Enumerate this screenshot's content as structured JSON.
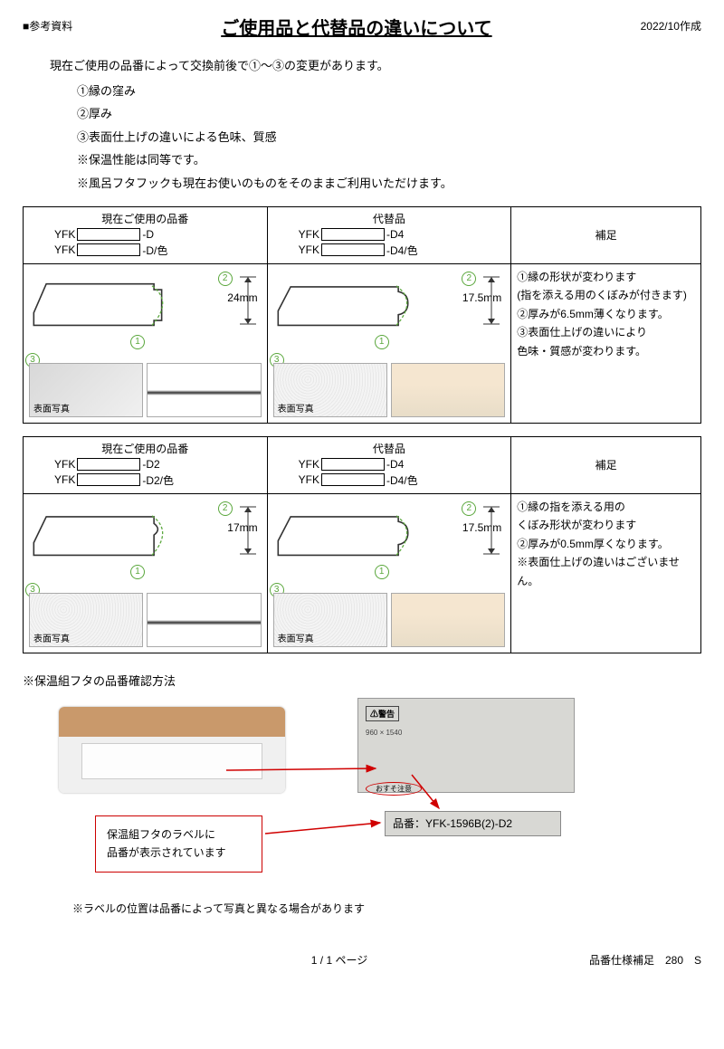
{
  "header": {
    "ref": "■参考資料",
    "date": "2022/10作成",
    "title": "ご使用品と代替品の違いについて"
  },
  "intro": {
    "lead": "現在ご使用の品番によって交換前後で①～③の変更があります。",
    "items": [
      "①縁の窪み",
      "②厚み",
      "③表面仕上げの違いによる色味、質感",
      "※保温性能は同等です。",
      "※風呂フタフックも現在お使いのものをそのままご利用いただけます。"
    ]
  },
  "tables": [
    {
      "col_current": "現在ご使用の品番",
      "col_alt": "代替品",
      "col_note": "補足",
      "current_codes": [
        {
          "p": "YFK",
          "s": "-D"
        },
        {
          "p": "YFK",
          "s": "-D/色"
        }
      ],
      "alt_codes": [
        {
          "p": "YFK",
          "s": "-D4"
        },
        {
          "p": "YFK",
          "s": "-D4/色"
        }
      ],
      "current_dim": "24mm",
      "alt_dim": "17.5mm",
      "photo_caption": "表面写真",
      "notes": [
        "①縁の形状が変わります",
        "(指を添える用のくぼみが付きます)",
        "②厚みが6.5mm薄くなります。",
        "③表面仕上げの違いにより",
        "色味・質感が変わります。"
      ],
      "current_textured": false,
      "alt_textured": true,
      "show_marker3": true
    },
    {
      "col_current": "現在ご使用の品番",
      "col_alt": "代替品",
      "col_note": "補足",
      "current_codes": [
        {
          "p": "YFK",
          "s": "-D2"
        },
        {
          "p": "YFK",
          "s": "-D2/色"
        }
      ],
      "alt_codes": [
        {
          "p": "YFK",
          "s": "-D4"
        },
        {
          "p": "YFK",
          "s": "-D4/色"
        }
      ],
      "current_dim": "17mm",
      "alt_dim": "17.5mm",
      "photo_caption": "表面写真",
      "notes": [
        "①縁の指を添える用の",
        "くぼみ形状が変わります",
        "②厚みが0.5mm厚くなります。",
        "※表面仕上げの違いはございません。"
      ],
      "current_textured": true,
      "alt_textured": true,
      "show_marker3": true
    }
  ],
  "markers": {
    "m1": "1",
    "m2": "2",
    "m3": "3"
  },
  "check": {
    "title": "※保温組フタの品番確認方法",
    "warn_label": "⚠警告",
    "oval_text": "おすそ注意",
    "example_code_label": "品番：",
    "example_code": "YFK-1596B(2)-D2",
    "note_line1": "保温組フタのラベルに",
    "note_line2": "品番が表示されています",
    "footnote": "※ラベルの位置は品番によって写真と異なる場合があります"
  },
  "footer": {
    "page": "1 / 1 ページ",
    "right": "品番仕様補足　280　S"
  },
  "colors": {
    "marker_green": "#5aa73c",
    "arrow_red": "#d00000",
    "note_border": "#c00000"
  }
}
